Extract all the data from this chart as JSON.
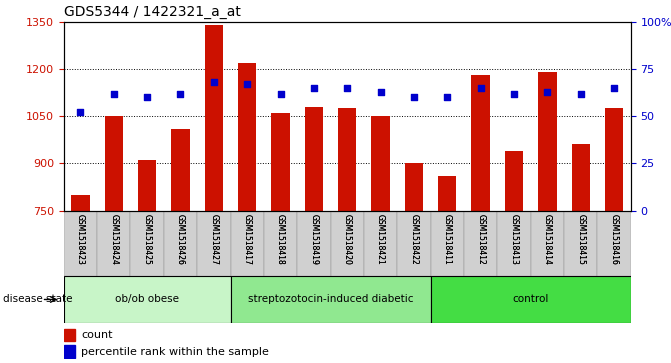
{
  "title": "GDS5344 / 1422321_a_at",
  "samples": [
    "GSM1518423",
    "GSM1518424",
    "GSM1518425",
    "GSM1518426",
    "GSM1518427",
    "GSM1518417",
    "GSM1518418",
    "GSM1518419",
    "GSM1518420",
    "GSM1518421",
    "GSM1518422",
    "GSM1518411",
    "GSM1518412",
    "GSM1518413",
    "GSM1518414",
    "GSM1518415",
    "GSM1518416"
  ],
  "counts": [
    800,
    1050,
    910,
    1010,
    1340,
    1220,
    1060,
    1080,
    1075,
    1050,
    900,
    860,
    1180,
    940,
    1190,
    960,
    1075
  ],
  "percentiles": [
    52,
    62,
    60,
    62,
    68,
    67,
    62,
    65,
    65,
    63,
    60,
    60,
    65,
    62,
    63,
    62,
    65
  ],
  "groups": [
    {
      "label": "ob/ob obese",
      "start": 0,
      "end": 5,
      "color": "#c8f5c8"
    },
    {
      "label": "streptozotocin-induced diabetic",
      "start": 5,
      "end": 11,
      "color": "#90e890"
    },
    {
      "label": "control",
      "start": 11,
      "end": 17,
      "color": "#44dd44"
    }
  ],
  "bar_color": "#cc1100",
  "dot_color": "#0000cc",
  "ylim_left": [
    750,
    1350
  ],
  "ylim_right": [
    0,
    100
  ],
  "yticks_left": [
    750,
    900,
    1050,
    1200,
    1350
  ],
  "yticks_right": [
    0,
    25,
    50,
    75,
    100
  ],
  "ylabel_left_color": "#cc1100",
  "ylabel_right_color": "#0000cc",
  "plot_bg_color": "#ffffff",
  "xtick_bg_color": "#d0d0d0",
  "grid_color": "#000000",
  "disease_state_label": "disease state",
  "legend_count_label": "count",
  "legend_percentile_label": "percentile rank within the sample"
}
